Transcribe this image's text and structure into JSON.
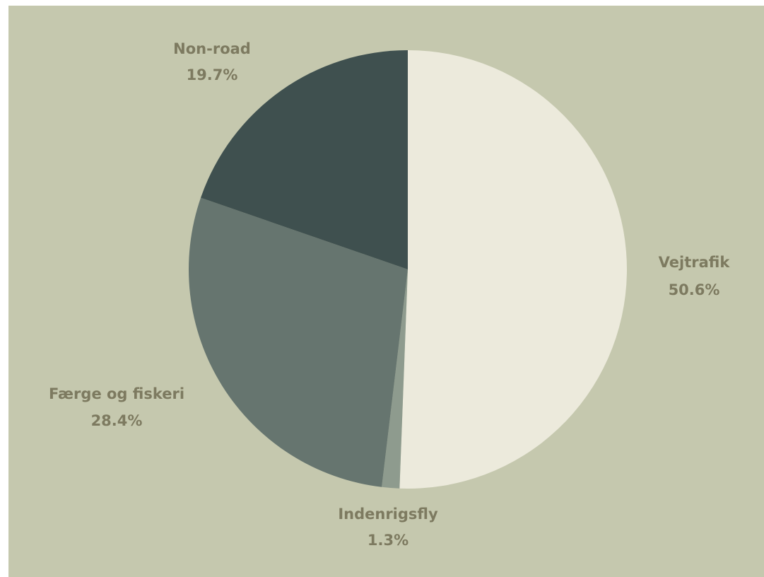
{
  "chart_data": {
    "type": "pie",
    "title": "",
    "start_angle_deg": 0,
    "direction": "clockwise",
    "slices": [
      {
        "label": "Vejtrafik",
        "value": 50.6,
        "display": "50.6%",
        "color": "#eceadc",
        "label_side": "right"
      },
      {
        "label": "Indenrigsfly",
        "value": 1.3,
        "display": "1.3%",
        "color": "#8e9b8e",
        "label_side": "bottom"
      },
      {
        "label": "Færge og fiskeri",
        "value": 28.4,
        "display": "28.4%",
        "color": "#66756f",
        "label_side": "left"
      },
      {
        "label": "Non-road",
        "value": 19.7,
        "display": "19.7%",
        "color": "#3f504f",
        "label_side": "top-left"
      }
    ]
  },
  "colors": {
    "background": "#c5c8ae",
    "label_text": "#7d7a60"
  }
}
